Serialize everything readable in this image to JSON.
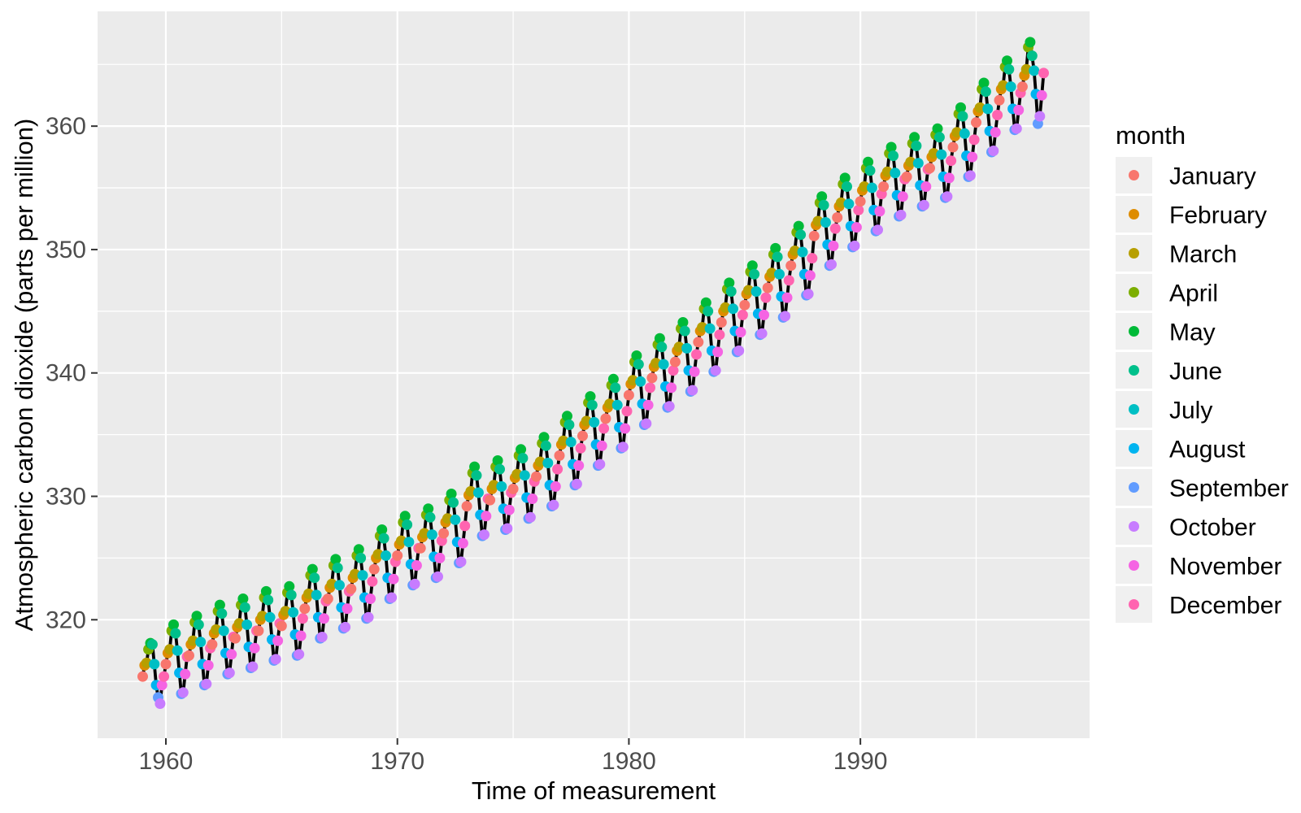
{
  "chart_data": {
    "type": "scatter",
    "title": "",
    "xlabel": "Time of measurement",
    "ylabel": "Atmospheric carbon dioxide (parts per million)",
    "legend_title": "month",
    "legend_position": "right",
    "grid": "major-and-minor",
    "panel_bg": "#EBEBEB",
    "grid_color": "#FFFFFF",
    "key_bg": "#F0F0F0",
    "axis_text_color": "#4D4D4D",
    "tick_color": "#333333",
    "line_color": "#000000",
    "xlim": [
      1957.05,
      1999.9
    ],
    "ylim": [
      310.4,
      369.3
    ],
    "x_ticks": [
      1960,
      1970,
      1980,
      1990
    ],
    "x_tick_labels": [
      "1960",
      "1970",
      "1980",
      "1990"
    ],
    "x_minor_ticks": [
      1965,
      1975,
      1985,
      1995
    ],
    "y_ticks": [
      320,
      330,
      340,
      350,
      360
    ],
    "y_tick_labels": [
      "320",
      "330",
      "340",
      "350",
      "360"
    ],
    "y_minor_ticks": [
      315,
      325,
      335,
      345,
      355,
      365
    ],
    "years": [
      1959,
      1960,
      1961,
      1962,
      1963,
      1964,
      1965,
      1966,
      1967,
      1968,
      1969,
      1970,
      1971,
      1972,
      1973,
      1974,
      1975,
      1976,
      1977,
      1978,
      1979,
      1980,
      1981,
      1982,
      1983,
      1984,
      1985,
      1986,
      1987,
      1988,
      1989,
      1990,
      1991,
      1992,
      1993,
      1994,
      1995,
      1996,
      1997
    ],
    "series": [
      {
        "name": "January",
        "month_index": 0,
        "color": "#F8766D",
        "values": [
          315.4,
          316.4,
          317.1,
          318.0,
          318.5,
          319.1,
          319.5,
          320.9,
          321.7,
          322.5,
          324.1,
          325.2,
          325.8,
          327.0,
          329.2,
          329.7,
          330.6,
          331.6,
          333.3,
          334.9,
          336.3,
          338.2,
          339.6,
          340.9,
          342.5,
          344.1,
          345.5,
          346.9,
          348.7,
          351.1,
          352.6,
          353.9,
          355.1,
          355.9,
          356.6,
          358.3,
          360.3,
          362.1,
          363.2
        ]
      },
      {
        "name": "February",
        "month_index": 1,
        "color": "#DE8C00",
        "values": [
          316.3,
          317.3,
          318.0,
          318.9,
          319.4,
          320.0,
          320.4,
          321.8,
          322.6,
          323.4,
          325.0,
          326.1,
          326.7,
          327.9,
          330.1,
          330.6,
          331.5,
          332.5,
          334.2,
          335.8,
          337.2,
          339.1,
          340.5,
          341.8,
          343.4,
          345.0,
          346.4,
          347.8,
          349.6,
          352.0,
          353.5,
          354.8,
          356.0,
          356.8,
          357.5,
          359.2,
          361.2,
          363.0,
          364.1
        ]
      },
      {
        "name": "March",
        "month_index": 2,
        "color": "#B79F00",
        "values": [
          316.5,
          317.6,
          318.3,
          319.2,
          319.7,
          320.3,
          320.7,
          322.1,
          322.9,
          323.7,
          325.3,
          326.4,
          327.0,
          328.2,
          330.4,
          330.9,
          331.8,
          332.8,
          334.5,
          336.1,
          337.5,
          339.4,
          340.8,
          342.1,
          343.7,
          345.3,
          346.7,
          348.1,
          349.9,
          352.3,
          353.8,
          355.1,
          356.3,
          357.1,
          357.8,
          359.5,
          361.5,
          363.3,
          364.6
        ]
      },
      {
        "name": "April",
        "month_index": 3,
        "color": "#7CAE00",
        "values": [
          317.6,
          319.1,
          319.8,
          320.7,
          321.2,
          321.8,
          322.2,
          323.6,
          324.4,
          325.2,
          326.8,
          327.9,
          328.5,
          329.7,
          331.9,
          332.4,
          333.3,
          334.3,
          336.0,
          337.6,
          339.0,
          340.9,
          342.3,
          343.6,
          345.2,
          346.8,
          348.2,
          349.6,
          351.4,
          353.8,
          355.3,
          356.6,
          357.8,
          358.6,
          359.3,
          361.0,
          363.0,
          364.8,
          366.4
        ]
      },
      {
        "name": "May",
        "month_index": 4,
        "color": "#00BA38",
        "values": [
          318.1,
          319.6,
          320.3,
          321.2,
          321.7,
          322.3,
          322.7,
          324.1,
          324.9,
          325.7,
          327.3,
          328.4,
          329.0,
          330.2,
          332.4,
          332.9,
          333.8,
          334.8,
          336.5,
          338.1,
          339.5,
          341.4,
          342.8,
          344.1,
          345.7,
          347.3,
          348.7,
          350.1,
          351.9,
          354.3,
          355.8,
          357.1,
          358.3,
          359.1,
          359.8,
          361.5,
          363.5,
          365.3,
          366.8
        ]
      },
      {
        "name": "June",
        "month_index": 5,
        "color": "#00C08B",
        "values": [
          318.0,
          318.9,
          319.6,
          320.5,
          321.0,
          321.6,
          322.0,
          323.4,
          324.2,
          325.0,
          326.6,
          327.7,
          328.3,
          329.5,
          331.7,
          332.2,
          333.1,
          334.1,
          335.8,
          337.4,
          338.8,
          340.7,
          342.1,
          343.4,
          345.0,
          346.6,
          348.0,
          349.4,
          351.2,
          353.6,
          355.1,
          356.4,
          357.6,
          358.4,
          359.1,
          360.8,
          362.8,
          364.6,
          365.7
        ]
      },
      {
        "name": "July",
        "month_index": 6,
        "color": "#00BFC4",
        "values": [
          316.4,
          317.5,
          318.2,
          319.1,
          319.6,
          320.2,
          320.6,
          322.0,
          322.8,
          323.6,
          325.2,
          326.3,
          326.9,
          328.1,
          330.3,
          330.8,
          331.7,
          332.7,
          334.4,
          336.0,
          337.4,
          339.3,
          340.7,
          342.0,
          343.6,
          345.2,
          346.6,
          348.0,
          349.8,
          352.2,
          353.7,
          355.0,
          356.2,
          357.0,
          357.7,
          359.4,
          361.4,
          363.2,
          364.5
        ]
      },
      {
        "name": "August",
        "month_index": 7,
        "color": "#00B4F0",
        "values": [
          314.7,
          315.7,
          316.4,
          317.3,
          317.8,
          318.4,
          318.8,
          320.2,
          321.0,
          321.8,
          323.4,
          324.5,
          325.1,
          326.3,
          328.5,
          329.0,
          329.9,
          330.9,
          332.6,
          334.2,
          335.6,
          337.5,
          338.9,
          340.2,
          341.8,
          343.4,
          344.8,
          346.2,
          348.0,
          350.4,
          351.9,
          353.2,
          354.4,
          355.2,
          355.9,
          357.6,
          359.6,
          361.4,
          362.6
        ]
      },
      {
        "name": "September",
        "month_index": 8,
        "color": "#619CFF",
        "values": [
          313.7,
          314.0,
          314.7,
          315.6,
          316.1,
          316.7,
          317.1,
          318.5,
          319.3,
          320.1,
          321.7,
          322.8,
          323.4,
          324.6,
          326.8,
          327.3,
          328.2,
          329.2,
          330.9,
          332.5,
          333.9,
          335.8,
          337.2,
          338.5,
          340.1,
          341.7,
          343.1,
          344.5,
          346.3,
          348.7,
          350.2,
          351.5,
          352.7,
          353.5,
          354.2,
          355.9,
          357.9,
          359.7,
          360.2
        ]
      },
      {
        "name": "October",
        "month_index": 9,
        "color": "#C77CFF",
        "values": [
          313.2,
          314.1,
          314.8,
          315.7,
          316.2,
          316.8,
          317.2,
          318.6,
          319.4,
          320.2,
          321.8,
          322.9,
          323.5,
          324.7,
          326.9,
          327.4,
          328.3,
          329.3,
          331.0,
          332.6,
          334.0,
          335.9,
          337.3,
          338.6,
          340.2,
          341.8,
          343.2,
          344.6,
          346.4,
          348.8,
          350.3,
          351.6,
          352.8,
          353.6,
          354.3,
          356.0,
          358.0,
          359.8,
          360.8
        ]
      },
      {
        "name": "November",
        "month_index": 10,
        "color": "#F564E3",
        "values": [
          314.7,
          315.6,
          316.3,
          317.2,
          317.7,
          318.3,
          318.7,
          320.1,
          320.9,
          321.7,
          323.3,
          324.4,
          325.0,
          326.2,
          328.4,
          328.9,
          329.8,
          330.8,
          332.5,
          334.1,
          335.5,
          337.4,
          338.8,
          340.1,
          341.7,
          343.3,
          344.7,
          346.1,
          347.9,
          350.3,
          351.8,
          353.1,
          354.3,
          355.1,
          355.8,
          357.5,
          359.5,
          361.3,
          362.5
        ]
      },
      {
        "name": "December",
        "month_index": 11,
        "color": "#FF64B0",
        "values": [
          315.4,
          317.0,
          317.7,
          318.6,
          319.1,
          319.7,
          320.1,
          321.5,
          322.3,
          323.1,
          324.7,
          325.8,
          326.4,
          327.6,
          329.8,
          330.3,
          331.2,
          332.2,
          333.9,
          335.5,
          336.9,
          338.8,
          340.2,
          341.5,
          343.1,
          344.7,
          346.1,
          347.5,
          349.3,
          351.7,
          353.2,
          354.5,
          355.7,
          356.5,
          357.2,
          358.9,
          360.9,
          362.7,
          364.3
        ]
      }
    ]
  }
}
